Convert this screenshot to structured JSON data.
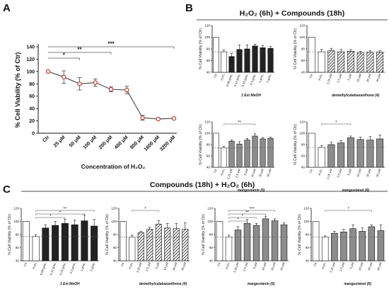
{
  "figure": {
    "panel_labels": [
      "A",
      "B",
      "C"
    ],
    "banner_B": "H₂O₂ (6h) + Compounds (18h)",
    "banner_C": "Compounds (18h) + H₂O₂ (6h)"
  },
  "colors": {
    "line_red": "#c0392b",
    "bar_dark": "#222222",
    "bar_gray": "#8c8c8c",
    "bar_white": "#ffffff",
    "dashed_ref": "#555555"
  },
  "chart_data": [
    {
      "id": "A",
      "type": "line",
      "ylabel": "% Cell Viability (% of Ctr)",
      "xlabel": "Concentration of H₂O₂",
      "ylim": [
        0,
        140
      ],
      "yticks": [
        0,
        20,
        40,
        60,
        80,
        100,
        120,
        140
      ],
      "categories": [
        "Ctr",
        "25 μM",
        "50 μM",
        "100 μM",
        "200 μM",
        "400 μM",
        "800 μM",
        "1600 μM",
        "3200 μM"
      ],
      "values": [
        100,
        91,
        80,
        82,
        71,
        70,
        25,
        23,
        24
      ],
      "errors": [
        0,
        10,
        10,
        6,
        4,
        6,
        4,
        1,
        1
      ],
      "significance": [
        {
          "from": 0,
          "to": 2,
          "label": "*"
        },
        {
          "from": 0,
          "to": 4,
          "label": "**"
        },
        {
          "from": 0,
          "to": 8,
          "label": "***"
        }
      ]
    },
    {
      "id": "B1",
      "type": "bar",
      "group_label": "1 Ext MeOH",
      "ylabel": "% Cell Viability (% of Ctr)",
      "ylim": [
        40,
        120
      ],
      "yticks": [
        40,
        60,
        80,
        100,
        120
      ],
      "categories": [
        "Ctr",
        "H₂O₂",
        "0.06 g/mL",
        "0.12 g/mL",
        "0.25 g/mL",
        "0.5 g/mL",
        "1 g/mL",
        "2 g/mL"
      ],
      "values": [
        100,
        75,
        67,
        79,
        80,
        85,
        82,
        81
      ],
      "errors": [
        0,
        3,
        5,
        8,
        7,
        3,
        4,
        3
      ],
      "fills": [
        "white",
        "white",
        "dark",
        "dark",
        "dark",
        "dark",
        "dark",
        "dark"
      ],
      "significance": []
    },
    {
      "id": "B2",
      "type": "bar",
      "group_label": "demethylcalabaxanthone (4)",
      "ylabel": "% Cell Viability (% of Ctr)",
      "ylim": [
        40,
        120
      ],
      "yticks": [
        40,
        60,
        80,
        100,
        120
      ],
      "categories": [
        "Ctr",
        "H₂O₂",
        "1.25 μM",
        "2.5 μM",
        "5 μM",
        "10 μM",
        "20 μM",
        "40 μM"
      ],
      "values": [
        100,
        75,
        77,
        75,
        76,
        73,
        74,
        74
      ],
      "errors": [
        0,
        4,
        4,
        4,
        3,
        3,
        3,
        3
      ],
      "fills": [
        "white",
        "white",
        "hatch",
        "hatch",
        "hatch",
        "hatch",
        "hatch",
        "hatch"
      ],
      "significance": []
    },
    {
      "id": "B3",
      "type": "bar",
      "group_label": "mangostanin (5)",
      "ylabel": "% Cell Viability (% of Ctr)",
      "ylim": [
        40,
        120
      ],
      "yticks": [
        40,
        60,
        80,
        100,
        120
      ],
      "categories": [
        "Ctr",
        "H₂O₂",
        "1.25 μM",
        "2.5 μM",
        "5 μM",
        "10 μM",
        "20 μM",
        "40 μM"
      ],
      "values": [
        100,
        74,
        86,
        81,
        88,
        95,
        90,
        91
      ],
      "errors": [
        0,
        3,
        2,
        4,
        3,
        4,
        2,
        2
      ],
      "fills": [
        "white",
        "white",
        "gray",
        "gray",
        "gray",
        "gray",
        "gray",
        "gray"
      ],
      "significance": [
        {
          "from": 1,
          "to": 5,
          "label": "**"
        }
      ]
    },
    {
      "id": "B4",
      "type": "bar",
      "group_label": "mangostanol (6)",
      "ylabel": "% Cell Viability (% of Ctr)",
      "ylim": [
        40,
        120
      ],
      "yticks": [
        40,
        60,
        80,
        100,
        120
      ],
      "categories": [
        "Ctr",
        "H₂O₂",
        "1.25 μM",
        "2.5 μM",
        "5 μM",
        "10 μM",
        "20 μM",
        "40 μM"
      ],
      "values": [
        100,
        75,
        80,
        83,
        92,
        89,
        88,
        90
      ],
      "errors": [
        0,
        3,
        4,
        4,
        3,
        4,
        6,
        7
      ],
      "fills": [
        "white",
        "white",
        "gray",
        "gray",
        "gray",
        "gray",
        "gray",
        "gray"
      ],
      "significance": [
        {
          "from": 1,
          "to": 4,
          "label": "*"
        }
      ]
    },
    {
      "id": "C1",
      "type": "bar",
      "group_label": "1 Ext MeOH",
      "ylabel": "% Cell Viability (% of Ctr)",
      "ylim": [
        40,
        120
      ],
      "yticks": [
        40,
        60,
        80,
        100,
        120
      ],
      "categories": [
        "Ctr",
        "H₂O₂",
        "0.06 g/mL",
        "0.12 g/mL",
        "0.25 g/mL",
        "0.5 g/mL",
        "1 g/mL",
        "2 g/mL"
      ],
      "values": [
        100,
        77,
        90,
        94,
        97,
        95,
        101,
        93
      ],
      "errors": [
        0,
        3,
        5,
        6,
        6,
        7,
        9,
        10
      ],
      "fills": [
        "white",
        "white",
        "dark",
        "dark",
        "dark",
        "dark",
        "dark",
        "dark"
      ],
      "significance": [
        {
          "from": 1,
          "to": 4,
          "label": "*"
        },
        {
          "from": 1,
          "to": 6,
          "label": "*"
        },
        {
          "from": 1,
          "to": 7,
          "label": "**"
        }
      ]
    },
    {
      "id": "C2",
      "type": "bar",
      "group_label": "demethylcalabaxanthone (4)",
      "ylabel": "% Cell Viability (% of Ctr)",
      "ylim": [
        40,
        120
      ],
      "yticks": [
        40,
        60,
        80,
        100,
        120
      ],
      "categories": [
        "Ctr",
        "H₂O₂",
        "1.25 μM",
        "2.5 μM",
        "5 μM",
        "10 μM",
        "20 μM",
        "40 μM"
      ],
      "values": [
        100,
        76,
        83,
        88,
        96,
        90,
        89,
        88
      ],
      "errors": [
        0,
        3,
        2,
        3,
        5,
        7,
        8,
        10
      ],
      "fills": [
        "white",
        "white",
        "hatch",
        "hatch",
        "hatch",
        "hatch",
        "hatch",
        "hatch"
      ],
      "significance": [
        {
          "from": 1,
          "to": 4,
          "label": "*"
        }
      ]
    },
    {
      "id": "C3",
      "type": "bar",
      "group_label": "mangostanin (5)",
      "ylabel": "% Cell Viability (% of Ctr)",
      "ylim": [
        40,
        120
      ],
      "yticks": [
        40,
        60,
        80,
        100,
        120
      ],
      "categories": [
        "Ctr",
        "H₂O₂",
        "1.25 μM",
        "2.5 μM",
        "5 μM",
        "10 μM",
        "20 μM",
        "40 μM"
      ],
      "values": [
        100,
        76,
        87,
        97,
        94,
        104,
        101,
        95
      ],
      "errors": [
        0,
        3,
        5,
        6,
        3,
        4,
        3,
        3
      ],
      "fills": [
        "white",
        "white",
        "gray",
        "gray",
        "gray",
        "gray",
        "gray",
        "gray"
      ],
      "significance": [
        {
          "from": 1,
          "to": 3,
          "label": "*"
        },
        {
          "from": 1,
          "to": 4,
          "label": "*"
        },
        {
          "from": 1,
          "to": 5,
          "label": "**"
        },
        {
          "from": 1,
          "to": 6,
          "label": "***"
        }
      ]
    },
    {
      "id": "C4",
      "type": "bar",
      "group_label": "mangostanol (6)",
      "ylabel": "% Cell Viability (% of Ctr)",
      "ylim": [
        40,
        120
      ],
      "yticks": [
        40,
        60,
        80,
        100,
        120
      ],
      "categories": [
        "Ctr",
        "H₂O₂",
        "1.25 μM",
        "2.5 μM",
        "5 μM",
        "10 μM",
        "20 μM",
        "40 μM"
      ],
      "values": [
        100,
        76,
        82,
        84,
        89,
        85,
        92,
        86
      ],
      "errors": [
        0,
        2,
        3,
        4,
        6,
        5,
        3,
        9
      ],
      "fills": [
        "white",
        "white",
        "gray",
        "gray",
        "gray",
        "gray",
        "gray",
        "gray"
      ],
      "significance": [
        {
          "from": 1,
          "to": 6,
          "label": "*"
        }
      ]
    }
  ]
}
